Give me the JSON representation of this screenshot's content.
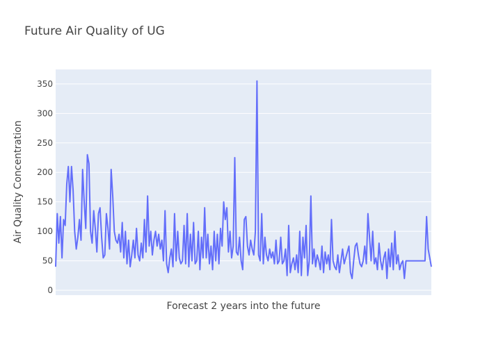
{
  "chart_data": {
    "type": "line",
    "title": "Future Air Quality of UG",
    "x_label": "Forecast 2 years into the future",
    "y_label": "Air Quality Concentration",
    "color": "#636efa",
    "grid": true,
    "ylim": [
      -8.2,
      374.6
    ],
    "yticks": [
      0,
      50,
      100,
      150,
      200,
      250,
      300,
      350
    ],
    "values": [
      40,
      130,
      80,
      125,
      55,
      120,
      110,
      180,
      210,
      150,
      210,
      170,
      100,
      70,
      90,
      120,
      85,
      205,
      150,
      105,
      230,
      215,
      100,
      80,
      135,
      105,
      65,
      130,
      140,
      90,
      55,
      60,
      130,
      105,
      70,
      205,
      160,
      100,
      85,
      80,
      95,
      65,
      115,
      55,
      100,
      45,
      85,
      40,
      60,
      85,
      55,
      105,
      60,
      50,
      80,
      55,
      120,
      65,
      160,
      75,
      100,
      60,
      85,
      100,
      75,
      95,
      70,
      85,
      50,
      135,
      45,
      30,
      55,
      70,
      40,
      130,
      50,
      100,
      55,
      45,
      50,
      110,
      45,
      130,
      40,
      95,
      50,
      115,
      45,
      50,
      100,
      35,
      90,
      55,
      140,
      55,
      95,
      45,
      75,
      35,
      100,
      50,
      95,
      45,
      105,
      75,
      150,
      120,
      140,
      65,
      100,
      55,
      75,
      225,
      65,
      60,
      90,
      50,
      35,
      120,
      125,
      75,
      60,
      85,
      70,
      60,
      100,
      355,
      60,
      50,
      130,
      45,
      90,
      60,
      50,
      70,
      55,
      65,
      45,
      85,
      45,
      50,
      90,
      45,
      50,
      70,
      25,
      110,
      30,
      45,
      55,
      35,
      60,
      30,
      100,
      25,
      90,
      55,
      110,
      25,
      50,
      160,
      45,
      70,
      40,
      60,
      50,
      35,
      75,
      30,
      65,
      45,
      60,
      35,
      120,
      50,
      40,
      35,
      60,
      30,
      50,
      70,
      45,
      55,
      65,
      75,
      30,
      20,
      50,
      75,
      80,
      60,
      45,
      40,
      50,
      75,
      45,
      130,
      90,
      50,
      100,
      45,
      55,
      35,
      80,
      50,
      35,
      55,
      65,
      20,
      70,
      40,
      80,
      35,
      100,
      45,
      60,
      35,
      45,
      50,
      20,
      50,
      50,
      50,
      50,
      50,
      50,
      50,
      50,
      50,
      50,
      50,
      50,
      50,
      125,
      70,
      55,
      40
    ]
  }
}
